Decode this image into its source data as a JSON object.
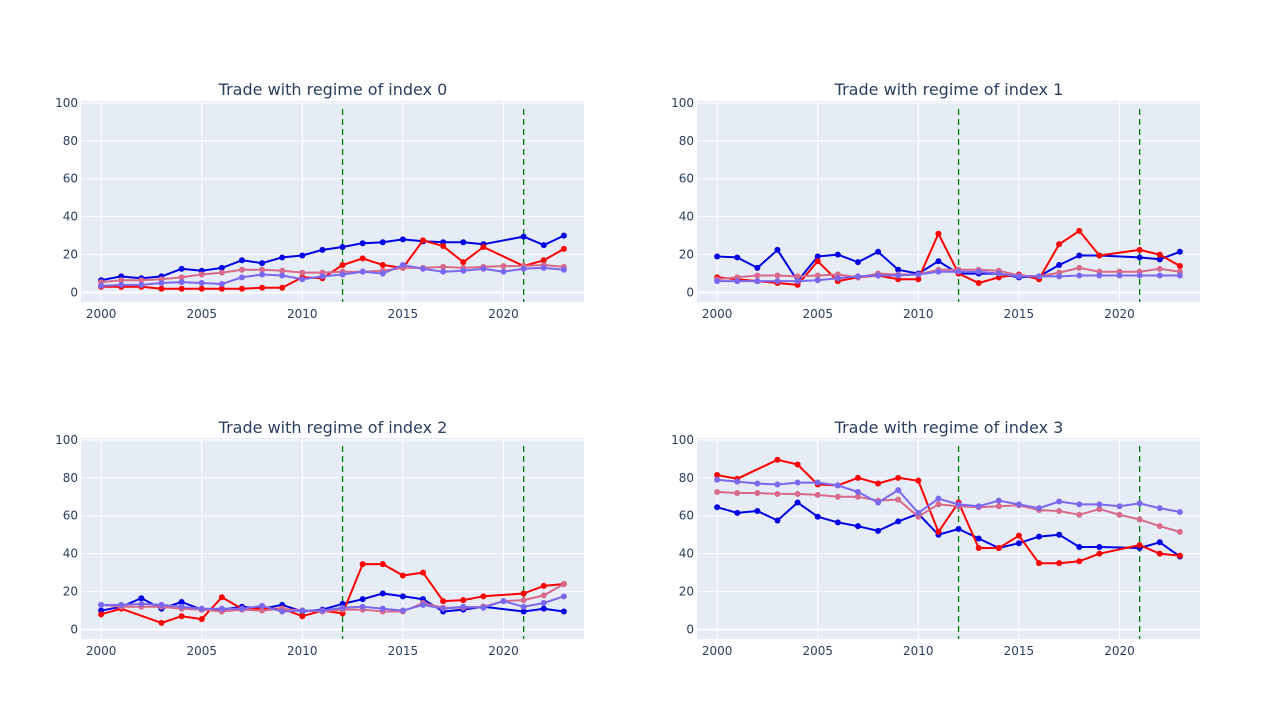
{
  "colors": {
    "plot_bg": "#e5ecf6",
    "grid": "#ffffff",
    "vline": "#008000",
    "series": [
      "#0000e6",
      "#ff0000",
      "#d86a8a",
      "#7b68ee"
    ]
  },
  "chart_data": [
    {
      "type": "line",
      "title": "Trade with regime of index 0",
      "xlabel": "",
      "ylabel": "",
      "xlim": [
        1999,
        2024
      ],
      "ylim": [
        -5,
        101
      ],
      "xticks": [
        2000,
        2005,
        2010,
        2015,
        2020
      ],
      "yticks": [
        0,
        20,
        40,
        60,
        80,
        100
      ],
      "grid": true,
      "vlines": [
        2012,
        2021
      ],
      "series": [
        {
          "x": [
            2000,
            2001,
            2002,
            2003,
            2004,
            2005,
            2006,
            2007,
            2008,
            2009,
            2010,
            2011,
            2012,
            2013,
            2014,
            2015,
            2016,
            2017,
            2018,
            2019,
            2021,
            2022,
            2023
          ],
          "values": [
            6.5,
            8.5,
            7.5,
            8.5,
            12.5,
            11.5,
            13,
            17,
            15.5,
            18.5,
            19.5,
            22.5,
            24,
            26,
            26.5,
            28,
            27,
            26.5,
            26.5,
            25.5,
            29.5,
            25,
            30
          ]
        },
        {
          "x": [
            2000,
            2001,
            2002,
            2003,
            2004,
            2005,
            2006,
            2007,
            2008,
            2009,
            2010,
            2011,
            2012,
            2013,
            2014,
            2015,
            2016,
            2017,
            2018,
            2019,
            2021,
            2022,
            2023
          ],
          "values": [
            3,
            3,
            3,
            2,
            2,
            2,
            2,
            2,
            2.5,
            2.5,
            8,
            7.5,
            14.5,
            18,
            14.5,
            13,
            27.5,
            24.5,
            16,
            24,
            14,
            17,
            23
          ]
        },
        {
          "x": [
            2000,
            2001,
            2002,
            2003,
            2004,
            2005,
            2006,
            2007,
            2008,
            2009,
            2010,
            2011,
            2012,
            2013,
            2014,
            2015,
            2016,
            2017,
            2018,
            2019,
            2020,
            2021,
            2022,
            2023
          ],
          "values": [
            5.5,
            6.5,
            6.5,
            7,
            8,
            9.5,
            10.5,
            12,
            12,
            11.5,
            10.5,
            10.5,
            11,
            11,
            11.5,
            13,
            13,
            13.5,
            13,
            13.5,
            14,
            14,
            14.5,
            13.5
          ]
        },
        {
          "x": [
            2000,
            2001,
            2002,
            2003,
            2004,
            2005,
            2006,
            2007,
            2008,
            2009,
            2010,
            2011,
            2012,
            2013,
            2014,
            2015,
            2016,
            2017,
            2018,
            2019,
            2020,
            2021,
            2022,
            2023
          ],
          "values": [
            3.5,
            4,
            4,
            5,
            5.5,
            5,
            4.5,
            8,
            9.5,
            9,
            7,
            8.5,
            9.5,
            11,
            10,
            14.5,
            12.5,
            11,
            11.5,
            12.5,
            11,
            12.5,
            13,
            12
          ]
        }
      ]
    },
    {
      "type": "line",
      "title": "Trade with regime of index 1",
      "xlabel": "",
      "ylabel": "",
      "xlim": [
        1999,
        2024
      ],
      "ylim": [
        -5,
        101
      ],
      "xticks": [
        2000,
        2005,
        2010,
        2015,
        2020
      ],
      "yticks": [
        0,
        20,
        40,
        60,
        80,
        100
      ],
      "grid": true,
      "vlines": [
        2012,
        2021
      ],
      "series": [
        {
          "x": [
            2000,
            2001,
            2002,
            2003,
            2004,
            2005,
            2006,
            2007,
            2008,
            2009,
            2010,
            2011,
            2012,
            2013,
            2014,
            2015,
            2016,
            2017,
            2018,
            2019,
            2021,
            2022,
            2023
          ],
          "values": [
            19,
            18.5,
            13,
            22.5,
            6,
            19,
            20,
            16,
            21.5,
            12,
            10,
            16.5,
            10,
            10,
            10,
            8,
            8.5,
            14.5,
            19.5,
            19.5,
            18.5,
            17.5,
            21.5
          ]
        },
        {
          "x": [
            2000,
            2001,
            2002,
            2003,
            2004,
            2005,
            2006,
            2007,
            2008,
            2009,
            2010,
            2011,
            2012,
            2013,
            2014,
            2015,
            2016,
            2017,
            2018,
            2019,
            2021,
            2022,
            2023
          ],
          "values": [
            8,
            7,
            6,
            5,
            4,
            16.5,
            6,
            8,
            9,
            7,
            7,
            31,
            10,
            5,
            8,
            9.5,
            7,
            25.5,
            32.5,
            19.5,
            22.5,
            20,
            14
          ]
        },
        {
          "x": [
            2000,
            2001,
            2002,
            2003,
            2004,
            2005,
            2006,
            2007,
            2008,
            2009,
            2010,
            2011,
            2012,
            2013,
            2014,
            2015,
            2016,
            2017,
            2018,
            2019,
            2020,
            2021,
            2022,
            2023
          ],
          "values": [
            7,
            8,
            9,
            9,
            8.5,
            9,
            9.5,
            8,
            10,
            9.5,
            9.5,
            12,
            12,
            12,
            11.5,
            9,
            8.5,
            10.5,
            13,
            11,
            11,
            11,
            12.5,
            11
          ]
        },
        {
          "x": [
            2000,
            2001,
            2002,
            2003,
            2004,
            2005,
            2006,
            2007,
            2008,
            2009,
            2010,
            2011,
            2012,
            2013,
            2014,
            2015,
            2016,
            2017,
            2018,
            2019,
            2020,
            2021,
            2022,
            2023
          ],
          "values": [
            6,
            6,
            6,
            6,
            6,
            6.5,
            7.5,
            8.5,
            9,
            9,
            9.5,
            11,
            11,
            11,
            10,
            8.5,
            8.5,
            8.5,
            9,
            9,
            9,
            9,
            9,
            9
          ]
        }
      ]
    },
    {
      "type": "line",
      "title": "Trade with regime of index 2",
      "xlabel": "",
      "ylabel": "",
      "xlim": [
        1999,
        2024
      ],
      "ylim": [
        -5,
        101
      ],
      "xticks": [
        2000,
        2005,
        2010,
        2015,
        2020
      ],
      "yticks": [
        0,
        20,
        40,
        60,
        80,
        100
      ],
      "grid": true,
      "vlines": [
        2012,
        2021
      ],
      "series": [
        {
          "x": [
            2000,
            2001,
            2002,
            2003,
            2004,
            2005,
            2006,
            2007,
            2008,
            2009,
            2010,
            2011,
            2012,
            2013,
            2014,
            2015,
            2016,
            2017,
            2018,
            2019,
            2021,
            2022,
            2023
          ],
          "values": [
            10,
            12,
            16.5,
            11,
            14.5,
            10.5,
            10.5,
            12,
            11,
            13,
            9.5,
            10.5,
            13.5,
            16,
            19,
            17.5,
            16,
            9.5,
            10.5,
            12,
            9.5,
            11,
            9.5
          ]
        },
        {
          "x": [
            2000,
            2001,
            2002,
            2003,
            2004,
            2005,
            2006,
            2007,
            2008,
            2009,
            2010,
            2011,
            2012,
            2013,
            2014,
            2015,
            2016,
            2017,
            2018,
            2019,
            2021,
            2022,
            2023
          ],
          "values": [
            8,
            11,
            null,
            3.5,
            7,
            5.5,
            17,
            11,
            11,
            11,
            7,
            10,
            8.5,
            34.5,
            34.5,
            28.5,
            30,
            15,
            15.5,
            17.5,
            19,
            23,
            24
          ]
        },
        {
          "x": [
            2000,
            2001,
            2002,
            2003,
            2004,
            2005,
            2006,
            2007,
            2008,
            2009,
            2010,
            2011,
            2012,
            2013,
            2014,
            2015,
            2016,
            2017,
            2018,
            2019,
            2020,
            2021,
            2022,
            2023
          ],
          "values": [
            13,
            12,
            12,
            12,
            11,
            10.5,
            9.5,
            10.5,
            10,
            11,
            10,
            9.5,
            10.5,
            10.5,
            9.5,
            9.5,
            14,
            11.5,
            11.5,
            12,
            15,
            15.5,
            18,
            24
          ]
        },
        {
          "x": [
            2000,
            2001,
            2002,
            2003,
            2004,
            2005,
            2006,
            2007,
            2008,
            2009,
            2010,
            2011,
            2012,
            2013,
            2014,
            2015,
            2016,
            2017,
            2018,
            2019,
            2020,
            2021,
            2022,
            2023
          ],
          "values": [
            13,
            13,
            13.5,
            13,
            12,
            11,
            11,
            11,
            12.5,
            9.5,
            10,
            10,
            11.5,
            12,
            11,
            10,
            13,
            11,
            12,
            11.5,
            15,
            12,
            14,
            17.5
          ]
        }
      ]
    },
    {
      "type": "line",
      "title": "Trade with regime of index 3",
      "xlabel": "",
      "ylabel": "",
      "xlim": [
        1999,
        2024
      ],
      "ylim": [
        -5,
        101
      ],
      "xticks": [
        2000,
        2005,
        2010,
        2015,
        2020
      ],
      "yticks": [
        0,
        20,
        40,
        60,
        80,
        100
      ],
      "grid": true,
      "vlines": [
        2012,
        2021
      ],
      "series": [
        {
          "x": [
            2000,
            2001,
            2002,
            2003,
            2004,
            2005,
            2006,
            2007,
            2008,
            2009,
            2010,
            2011,
            2012,
            2013,
            2014,
            2015,
            2016,
            2017,
            2018,
            2019,
            2021,
            2022,
            2023
          ],
          "values": [
            64.5,
            61.5,
            62.5,
            57.5,
            67,
            59.5,
            56.5,
            54.5,
            52,
            57,
            61,
            50,
            53,
            48,
            43,
            45.5,
            49,
            50,
            43.5,
            43.5,
            43,
            46,
            38.5
          ]
        },
        {
          "x": [
            2000,
            2001,
            2002,
            2003,
            2004,
            2005,
            2006,
            2007,
            2008,
            2009,
            2010,
            2011,
            2012,
            2013,
            2014,
            2015,
            2016,
            2017,
            2018,
            2019,
            2021,
            2022,
            2023
          ],
          "values": [
            81.5,
            79.5,
            null,
            89.5,
            87,
            76.5,
            76,
            80,
            77,
            80,
            78.5,
            51.5,
            67,
            43,
            43,
            49.5,
            35,
            35,
            36,
            40,
            44.5,
            40,
            39
          ]
        },
        {
          "x": [
            2000,
            2001,
            2002,
            2003,
            2004,
            2005,
            2006,
            2007,
            2008,
            2009,
            2010,
            2011,
            2012,
            2013,
            2014,
            2015,
            2016,
            2017,
            2018,
            2019,
            2020,
            2021,
            2022,
            2023
          ],
          "values": [
            72.5,
            72,
            72,
            71.5,
            71.5,
            71,
            70,
            70,
            68,
            68.5,
            59.5,
            66,
            65,
            64.5,
            65,
            65.5,
            63,
            62.5,
            60.5,
            63.5,
            60.5,
            58,
            54.5,
            51.5
          ]
        },
        {
          "x": [
            2000,
            2001,
            2002,
            2003,
            2004,
            2005,
            2006,
            2007,
            2008,
            2009,
            2010,
            2011,
            2012,
            2013,
            2014,
            2015,
            2016,
            2017,
            2018,
            2019,
            2020,
            2021,
            2022,
            2023
          ],
          "values": [
            79,
            78,
            77,
            76.5,
            77.5,
            77.5,
            76,
            72.5,
            67,
            73.5,
            61.5,
            69,
            66,
            65,
            68,
            66,
            64,
            67.5,
            66,
            66,
            65,
            66.5,
            64,
            62
          ]
        }
      ]
    }
  ]
}
